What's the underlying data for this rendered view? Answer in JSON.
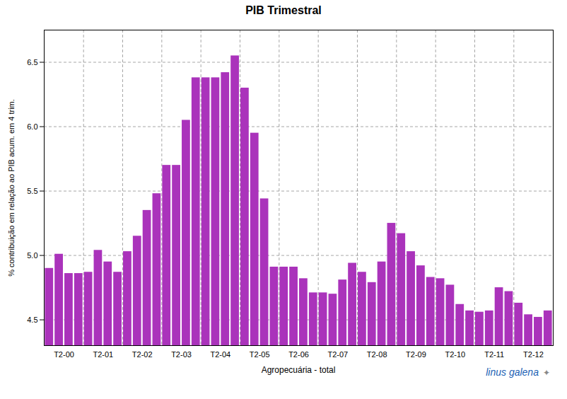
{
  "chart_data": {
    "type": "bar",
    "title": "PIB Trimestral",
    "xlabel": "Agropecuária - total",
    "ylabel": "% contribuição em relação ao PIB acum. em 4 trim.",
    "color": "#AA33BB",
    "categories": [
      "T2-00",
      null,
      null,
      null,
      "T2-01",
      null,
      null,
      null,
      "T2-02",
      null,
      null,
      null,
      "T2-03",
      null,
      null,
      null,
      "T2-04",
      null,
      null,
      null,
      "T2-05",
      null,
      null,
      null,
      "T2-06",
      null,
      null,
      null,
      "T2-07",
      null,
      null,
      null,
      "T2-08",
      null,
      null,
      null,
      "T2-09",
      null,
      null,
      null,
      "T2-10",
      null,
      null,
      null,
      "T2-11",
      null,
      null,
      null,
      "T2-12",
      null,
      null,
      null
    ],
    "values": [
      4.9,
      5.01,
      4.86,
      4.86,
      4.87,
      5.04,
      4.95,
      4.87,
      5.03,
      5.15,
      5.35,
      5.48,
      5.7,
      5.7,
      6.05,
      6.38,
      6.38,
      6.38,
      6.42,
      6.55,
      6.3,
      5.95,
      5.44,
      4.91,
      4.91,
      4.91,
      4.82,
      4.71,
      4.71,
      4.7,
      4.81,
      4.94,
      4.87,
      4.79,
      4.95,
      5.25,
      5.17,
      5.03,
      4.92,
      4.83,
      4.82,
      4.77,
      4.62,
      4.57,
      4.56,
      4.57,
      4.75,
      4.72,
      4.63,
      4.54,
      4.52,
      4.57
    ],
    "ylim": [
      4.3,
      6.75
    ],
    "yticks": [
      4.5,
      {
        "value": 5.0,
        "label": "5.0"
      },
      5.5,
      {
        "value": 6.0,
        "label": "6.0"
      },
      6.5
    ],
    "grid": true,
    "annotations": [
      {
        "text": "linus galena",
        "color": "#1a5fb4"
      },
      {
        "text": "✦",
        "color": "#888888"
      }
    ]
  }
}
